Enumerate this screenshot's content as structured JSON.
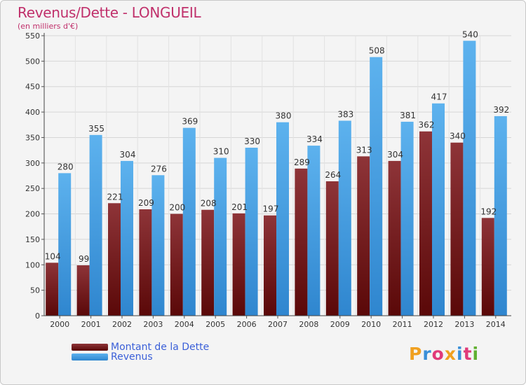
{
  "header": {
    "title": "Revenus/Dette - LONGUEIL",
    "subtitle": "(en milliers d'€)"
  },
  "legend": [
    {
      "label": "Montant de la Dette",
      "color": "#7a1c20"
    },
    {
      "label": "Revenus",
      "color": "#4aa3e6"
    }
  ],
  "logo": {
    "letters": [
      "P",
      "r",
      "o",
      "x",
      "i",
      "t",
      "i"
    ],
    "colors": [
      "#f0a020",
      "#3a8fd8",
      "#e03a7a",
      "#f0a020",
      "#3a8fd8",
      "#e03a7a",
      "#60b030"
    ]
  },
  "chart_data": {
    "type": "bar",
    "categories": [
      "2000",
      "2001",
      "2002",
      "2003",
      "2004",
      "2005",
      "2006",
      "2007",
      "2008",
      "2009",
      "2010",
      "2011",
      "2012",
      "2013",
      "2014"
    ],
    "series": [
      {
        "name": "Montant de la Dette",
        "color": "#7a1c20",
        "values": [
          104,
          99,
          221,
          209,
          200,
          208,
          201,
          197,
          289,
          264,
          313,
          304,
          362,
          340,
          192
        ]
      },
      {
        "name": "Revenus",
        "color": "#4aa3e6",
        "values": [
          280,
          355,
          304,
          276,
          369,
          310,
          330,
          380,
          334,
          383,
          508,
          381,
          417,
          540,
          392
        ]
      }
    ],
    "ylim": [
      0,
      550
    ],
    "yticks": [
      0,
      50,
      100,
      150,
      200,
      250,
      300,
      350,
      400,
      450,
      500,
      550
    ],
    "grid": true
  }
}
